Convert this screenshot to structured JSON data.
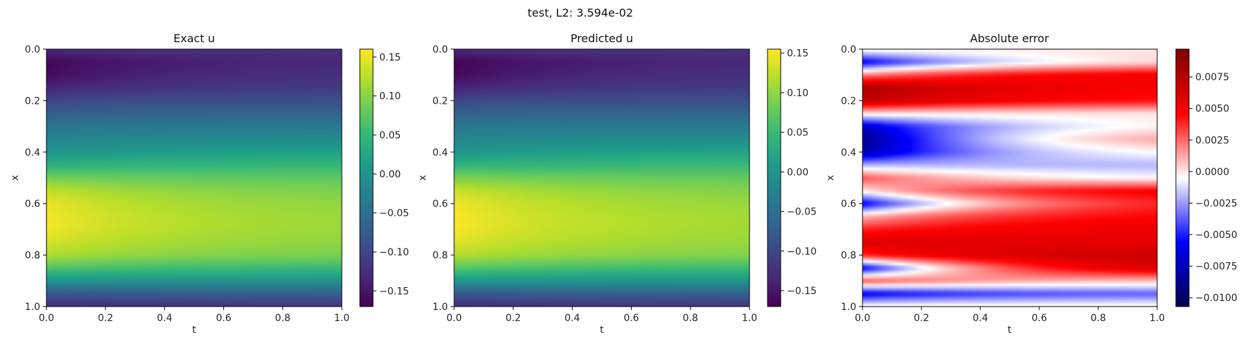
{
  "figure": {
    "suptitle": "test, L2: 3.594e-02"
  },
  "chart_data": [
    {
      "type": "heatmap",
      "title": "Exact u",
      "xlabel": "t",
      "ylabel": "x",
      "xlim": [
        0.0,
        1.0
      ],
      "ylim": [
        1.0,
        0.0
      ],
      "xticks": [
        "0.0",
        "0.2",
        "0.4",
        "0.6",
        "0.8",
        "1.0"
      ],
      "yticks": [
        "0.0",
        "0.2",
        "0.4",
        "0.6",
        "0.8",
        "1.0"
      ],
      "colormap": "viridis",
      "clim": [
        -0.17,
        0.16
      ],
      "colorbar_ticks": [
        "0.15",
        "0.10",
        "0.05",
        "0.00",
        "−0.05",
        "−0.10",
        "−0.15"
      ],
      "colorbar_tick_values": [
        0.15,
        0.1,
        0.05,
        0.0,
        -0.05,
        -0.1,
        -0.15
      ],
      "field": {
        "x": [
          0.0,
          0.05,
          0.1,
          0.15,
          0.2,
          0.25,
          0.3,
          0.35,
          0.4,
          0.45,
          0.5,
          0.55,
          0.6,
          0.65,
          0.7,
          0.75,
          0.8,
          0.85,
          0.9,
          0.95,
          1.0
        ],
        "u_t0": [
          -0.13,
          -0.165,
          -0.16,
          -0.135,
          -0.1,
          -0.07,
          -0.04,
          -0.02,
          0.0,
          0.04,
          0.09,
          0.13,
          0.15,
          0.155,
          0.155,
          0.14,
          0.12,
          0.07,
          0.0,
          -0.08,
          -0.13
        ],
        "u_t1": [
          -0.12,
          -0.13,
          -0.12,
          -0.11,
          -0.09,
          -0.065,
          -0.035,
          -0.01,
          0.02,
          0.05,
          0.075,
          0.09,
          0.1,
          0.105,
          0.105,
          0.1,
          0.09,
          0.05,
          0.0,
          -0.07,
          -0.12
        ]
      }
    },
    {
      "type": "heatmap",
      "title": "Predicted u",
      "xlabel": "t",
      "ylabel": "x",
      "xlim": [
        0.0,
        1.0
      ],
      "ylim": [
        1.0,
        0.0
      ],
      "xticks": [
        "0.0",
        "0.2",
        "0.4",
        "0.6",
        "0.8",
        "1.0"
      ],
      "yticks": [
        "0.0",
        "0.2",
        "0.4",
        "0.6",
        "0.8",
        "1.0"
      ],
      "colormap": "viridis",
      "clim": [
        -0.17,
        0.155
      ],
      "colorbar_ticks": [
        "0.15",
        "0.10",
        "0.05",
        "0.00",
        "−0.05",
        "−0.10",
        "−0.15"
      ],
      "colorbar_tick_values": [
        0.15,
        0.1,
        0.05,
        0.0,
        -0.05,
        -0.1,
        -0.15
      ],
      "field": {
        "x": [
          0.0,
          0.05,
          0.1,
          0.15,
          0.2,
          0.25,
          0.3,
          0.35,
          0.4,
          0.45,
          0.5,
          0.55,
          0.6,
          0.65,
          0.7,
          0.75,
          0.8,
          0.85,
          0.9,
          0.95,
          1.0
        ],
        "u_t0": [
          -0.13,
          -0.168,
          -0.162,
          -0.137,
          -0.1,
          -0.07,
          -0.04,
          -0.02,
          0.0,
          0.04,
          0.09,
          0.13,
          0.148,
          0.153,
          0.153,
          0.14,
          0.12,
          0.07,
          0.0,
          -0.08,
          -0.13
        ],
        "u_t1": [
          -0.12,
          -0.13,
          -0.12,
          -0.11,
          -0.09,
          -0.065,
          -0.035,
          -0.01,
          0.02,
          0.05,
          0.075,
          0.09,
          0.1,
          0.105,
          0.105,
          0.1,
          0.09,
          0.05,
          0.0,
          -0.07,
          -0.12
        ]
      }
    },
    {
      "type": "heatmap",
      "title": "Absolute error",
      "xlabel": "t",
      "ylabel": "x",
      "xlim": [
        0.0,
        1.0
      ],
      "ylim": [
        1.0,
        0.0
      ],
      "xticks": [
        "0.0",
        "0.2",
        "0.4",
        "0.6",
        "0.8",
        "1.0"
      ],
      "yticks": [
        "0.0",
        "0.2",
        "0.4",
        "0.6",
        "0.8",
        "1.0"
      ],
      "colormap": "seismic",
      "clim": [
        -0.0107,
        0.0097
      ],
      "colorbar_ticks": [
        "0.0075",
        "0.0050",
        "0.0025",
        "0.0000",
        "−0.0025",
        "−0.0050",
        "−0.0075",
        "−0.0100"
      ],
      "colorbar_tick_values": [
        0.0075,
        0.005,
        0.0025,
        0.0,
        -0.0025,
        -0.005,
        -0.0075,
        -0.01
      ],
      "field": {
        "x": [
          0.0,
          0.05,
          0.1,
          0.15,
          0.2,
          0.25,
          0.3,
          0.35,
          0.4,
          0.45,
          0.5,
          0.55,
          0.6,
          0.65,
          0.7,
          0.75,
          0.8,
          0.85,
          0.9,
          0.95,
          1.0
        ],
        "e_t0": [
          0.0,
          -0.006,
          0.002,
          0.008,
          0.007,
          0.0,
          -0.007,
          -0.009,
          -0.008,
          -0.002,
          0.003,
          0.0,
          -0.006,
          0.001,
          0.004,
          0.006,
          0.004,
          -0.006,
          0.003,
          -0.006,
          0.0
        ],
        "e_t1": [
          0.0,
          0.001,
          0.0055,
          0.0045,
          0.004,
          0.0,
          0.0005,
          0.0025,
          0.0005,
          -0.002,
          -0.001,
          0.0055,
          0.005,
          0.005,
          0.0055,
          0.0055,
          0.007,
          0.0075,
          0.0005,
          -0.0035,
          0.0
        ]
      }
    }
  ]
}
